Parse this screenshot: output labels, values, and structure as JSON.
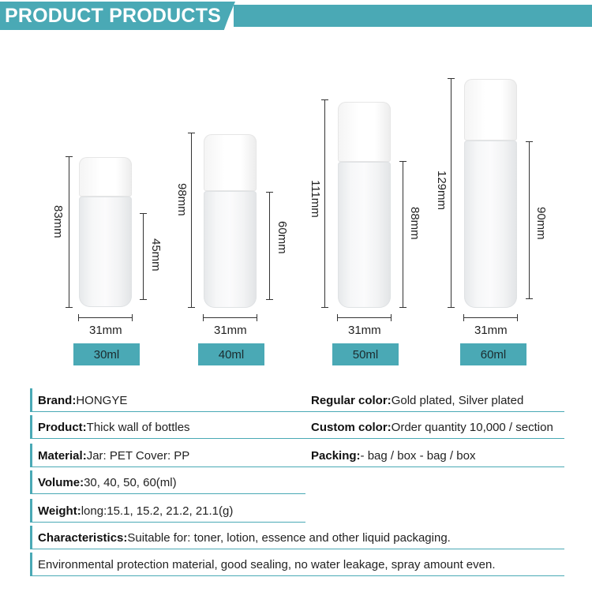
{
  "header": {
    "title": "PRODUCT PRODUCTS"
  },
  "bottles": [
    {
      "volume": "30ml",
      "width": "31mm",
      "height": "83mm",
      "body_height": "45mm"
    },
    {
      "volume": "40ml",
      "width": "31mm",
      "height": "98mm",
      "body_height": "60mm"
    },
    {
      "volume": "50ml",
      "width": "31mm",
      "height": "111mm",
      "body_height": "88mm"
    },
    {
      "volume": "60ml",
      "width": "31mm",
      "height": "129mm",
      "body_height": "90mm"
    }
  ],
  "specs": {
    "brand": {
      "label": "Brand:",
      "value": "HONGYE"
    },
    "regular_color": {
      "label": "Regular color:",
      "value": "Gold plated, Silver plated"
    },
    "product": {
      "label": "Product:",
      "value": "Thick wall of bottles"
    },
    "custom_color": {
      "label": "Custom color:",
      "value": "Order quantity 10,000 / section"
    },
    "material": {
      "label": "Material:",
      "value": "Jar: PET  Cover: PP"
    },
    "packing": {
      "label": "Packing:",
      "value": "- bag / box - bag / box"
    },
    "volume": {
      "label": "Volume:",
      "value": "30, 40, 50, 60(ml)"
    },
    "weight": {
      "label": "Weight:",
      "value": "long:15.1, 15.2, 21.2, 21.1(g)"
    },
    "characteristics": {
      "label": "Characteristics:",
      "value": "Suitable for: toner, lotion, essence and other liquid packaging."
    },
    "note": "Environmental protection material, good sealing, no water leakage, spray amount even."
  },
  "colors": {
    "accent": "#4aa9b5"
  }
}
